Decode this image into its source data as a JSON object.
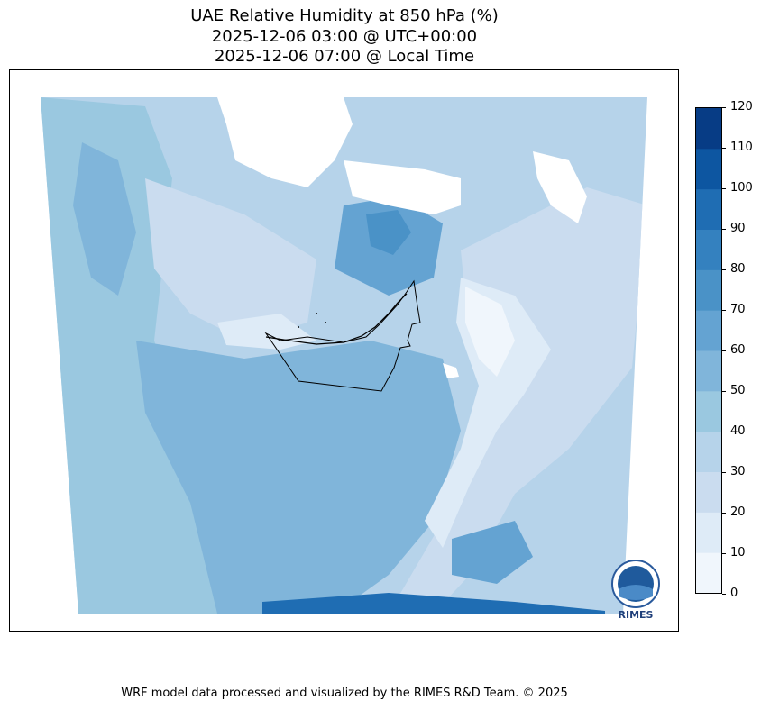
{
  "title": {
    "line1": "UAE Relative Humidity at 850 hPa (%)",
    "line2": "2025-12-06 03:00 @ UTC+00:00",
    "line3": "2025-12-06 07:00 @ Local Time"
  },
  "colorbar": {
    "levels": [
      "0",
      "10",
      "20",
      "30",
      "40",
      "50",
      "60",
      "70",
      "80",
      "90",
      "100",
      "110",
      "120"
    ],
    "colors": [
      "#f0f6fc",
      "#deebf7",
      "#cadcef",
      "#b6d3ea",
      "#9ac8e0",
      "#80b5da",
      "#64a3d2",
      "#4a92c7",
      "#3481bf",
      "#1f6db3",
      "#0d56a1",
      "#073c85"
    ]
  },
  "logo": {
    "text": "RIMES"
  },
  "footer": {
    "credit": "WRF model data processed and visualized by the RIMES R&D Team. © 2025"
  }
}
